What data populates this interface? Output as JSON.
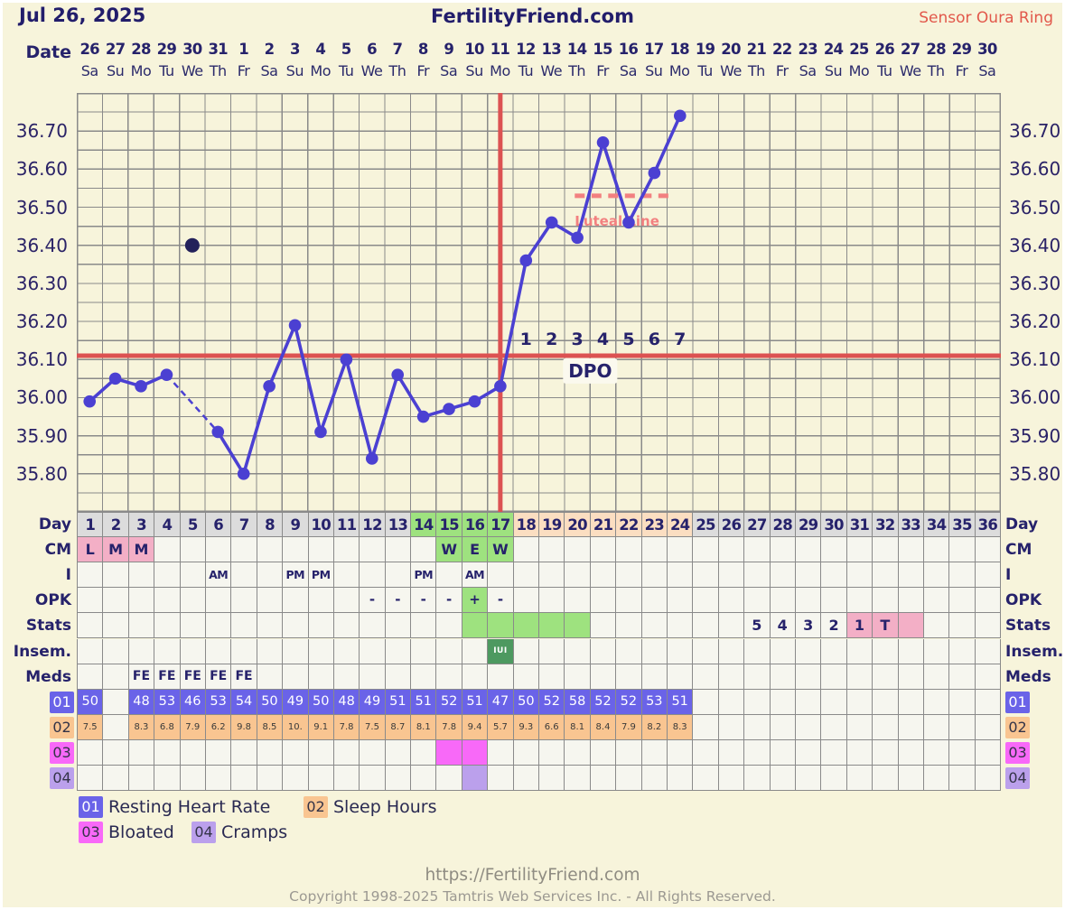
{
  "page": {
    "title_date": "Jul 26, 2025",
    "site_title": "FertilityFriend.com",
    "sensor_label": "Sensor Oura Ring",
    "footer_url": "https://FertilityFriend.com",
    "footer_copyright": "Copyright 1998-2025 Tamtris Web Services Inc. - All Rights Reserved."
  },
  "axis": {
    "date_label": "Date",
    "dates": [
      "26",
      "27",
      "28",
      "29",
      "30",
      "31",
      "1",
      "2",
      "3",
      "4",
      "5",
      "6",
      "7",
      "8",
      "9",
      "10",
      "11",
      "12",
      "13",
      "14",
      "15",
      "16",
      "17",
      "18",
      "19",
      "20",
      "21",
      "22",
      "23",
      "24",
      "25",
      "26",
      "27",
      "28",
      "29",
      "30"
    ],
    "weekdays": [
      "Sa",
      "Su",
      "Mo",
      "Tu",
      "We",
      "Th",
      "Fr",
      "Sa",
      "Su",
      "Mo",
      "Tu",
      "We",
      "Th",
      "Fr",
      "Sa",
      "Su",
      "Mo",
      "Tu",
      "We",
      "Th",
      "Fr",
      "Sa",
      "Su",
      "Mo",
      "Tu",
      "We",
      "Th",
      "Fr",
      "Sa",
      "Su",
      "Mo",
      "Tu",
      "We",
      "Th",
      "Fr",
      "Sa"
    ],
    "y_ticks": [
      "36.70",
      "36.60",
      "36.50",
      "36.40",
      "36.30",
      "36.20",
      "36.10",
      "36.00",
      "35.90",
      "35.80"
    ]
  },
  "chart_data": {
    "type": "line",
    "title": "Basal body temperature chart",
    "x_days": 36,
    "series": [
      {
        "name": "temperature",
        "values": [
          35.99,
          36.05,
          36.03,
          36.06,
          null,
          35.91,
          35.8,
          36.03,
          36.19,
          35.91,
          36.1,
          35.84,
          36.06,
          35.95,
          35.97,
          35.99,
          36.03,
          36.36,
          36.46,
          36.42,
          36.67,
          36.46,
          36.59,
          36.74,
          null,
          null,
          null,
          null,
          null,
          null,
          null,
          null,
          null,
          null,
          null,
          null
        ]
      }
    ],
    "ylim": [
      35.7,
      36.8
    ],
    "y_grid_step": 0.05,
    "y_label_step": 0.1,
    "coverline": 36.11,
    "ovulation_day": 17,
    "discarded_point": {
      "day": 5,
      "value": 36.4
    },
    "dashed_segment_days": [
      4,
      6
    ],
    "luteal_line": {
      "label": "Luteal Line",
      "value": 36.53,
      "day_start": 19.9,
      "day_end": 23.8
    },
    "dpo": {
      "label": "DPO",
      "numbers": [
        "1",
        "2",
        "3",
        "4",
        "5",
        "6",
        "7"
      ],
      "first_day": 18
    }
  },
  "table": {
    "row_labels": {
      "day": "Day",
      "cm": "CM",
      "i": "I",
      "opk": "OPK",
      "stats": "Stats",
      "insem": "Insem.",
      "meds": "Meds"
    },
    "day_numbers": [
      "1",
      "2",
      "3",
      "4",
      "5",
      "6",
      "7",
      "8",
      "9",
      "10",
      "11",
      "12",
      "13",
      "14",
      "15",
      "16",
      "17",
      "18",
      "19",
      "20",
      "21",
      "22",
      "23",
      "24",
      "25",
      "26",
      "27",
      "28",
      "29",
      "30",
      "31",
      "32",
      "33",
      "34",
      "35",
      "36"
    ],
    "day_green_days": [
      14,
      15,
      16,
      17
    ],
    "day_peach_days": [
      18,
      19,
      20,
      21,
      22,
      23,
      24
    ],
    "cm_entries": [
      [
        1,
        "L",
        "pink"
      ],
      [
        2,
        "M",
        "pink"
      ],
      [
        3,
        "M",
        "pink"
      ],
      [
        15,
        "W",
        "green"
      ],
      [
        16,
        "E",
        "green"
      ],
      [
        17,
        "W",
        "green"
      ]
    ],
    "i_entries": [
      [
        6,
        "AM"
      ],
      [
        9,
        "PM"
      ],
      [
        10,
        "PM"
      ],
      [
        14,
        "PM"
      ],
      [
        16,
        "AM"
      ]
    ],
    "opk_entries": [
      [
        12,
        "-"
      ],
      [
        13,
        "-"
      ],
      [
        14,
        "-"
      ],
      [
        15,
        "-"
      ],
      [
        16,
        "+",
        "green"
      ],
      [
        17,
        "-"
      ]
    ],
    "stats_entries": [
      [
        16,
        "",
        "green"
      ],
      [
        17,
        "",
        "green"
      ],
      [
        18,
        "",
        "green"
      ],
      [
        19,
        "",
        "green"
      ],
      [
        20,
        "",
        "green"
      ],
      [
        27,
        "5"
      ],
      [
        28,
        "4"
      ],
      [
        29,
        "3"
      ],
      [
        30,
        "2"
      ],
      [
        31,
        "1",
        "pink"
      ],
      [
        32,
        "T",
        "pink"
      ],
      [
        33,
        "",
        "pink"
      ]
    ],
    "insem_entries": [
      [
        17,
        "IUI",
        "iui"
      ]
    ],
    "meds_entries": [
      [
        3,
        "FE"
      ],
      [
        4,
        "FE"
      ],
      [
        5,
        "FE"
      ],
      [
        6,
        "FE"
      ],
      [
        7,
        "FE"
      ]
    ],
    "resting_heart_rate": [
      "50",
      "",
      "48",
      "53",
      "46",
      "53",
      "54",
      "50",
      "49",
      "50",
      "48",
      "49",
      "51",
      "51",
      "52",
      "51",
      "47",
      "50",
      "52",
      "58",
      "52",
      "52",
      "53",
      "51",
      "",
      "",
      "",
      "",
      "",
      "",
      "",
      "",
      "",
      "",
      "",
      ""
    ],
    "sleep_hours": [
      "7.5",
      "",
      "8.3",
      "6.8",
      "7.9",
      "6.2",
      "9.8",
      "8.5",
      "10.",
      "9.1",
      "7.8",
      "7.5",
      "8.7",
      "8.1",
      "7.8",
      "9.4",
      "5.7",
      "9.3",
      "6.6",
      "8.1",
      "8.4",
      "7.9",
      "8.2",
      "8.3",
      "",
      "",
      "",
      "",
      "",
      "",
      "",
      "",
      "",
      "",
      "",
      ""
    ],
    "bloated_days": [
      15,
      16
    ],
    "cramps_days": [
      16
    ]
  },
  "legend": [
    {
      "code": "01",
      "label": "Resting Heart Rate"
    },
    {
      "code": "02",
      "label": "Sleep Hours"
    },
    {
      "code": "03",
      "label": "Bloated"
    },
    {
      "code": "04",
      "label": "Cramps"
    }
  ],
  "colors": {
    "background": "#F7F4DB",
    "navy": "#26226B",
    "grid": "#8A8A8A",
    "cell_bg": "#F6F6EF",
    "day_gray": "#DCDCDC",
    "green": "#9EE27F",
    "peach": "#FBDEC1",
    "pink": "#F3AFC6",
    "hr_blue": "#6A63E8",
    "sleep_peach": "#F9C591",
    "bloated_magenta": "#F869F8",
    "cramps_purple": "#BBA0EC",
    "iui_green": "#4D9960",
    "red_line": "#DC5252",
    "luteal_salmon": "#F28080",
    "temp_line": "#4B40D2",
    "discarded_dot": "#23215A",
    "sensor_red": "#E2584B",
    "footer_gray": "#9C9992"
  }
}
